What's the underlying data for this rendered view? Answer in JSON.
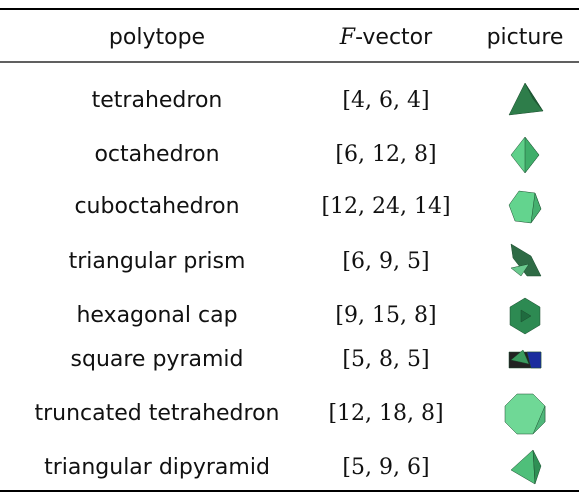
{
  "table": {
    "header": [
      "polytope",
      [
        "F",
        "-vector"
      ],
      "picture"
    ],
    "rows": [
      [
        "tetrahedron",
        "[4, 6, 4]"
      ],
      [
        "octahedron",
        "[6, 12, 8]"
      ],
      [
        "cuboctahedron",
        "[12, 24, 14]"
      ],
      [
        "triangular prism",
        "[6, 9, 5]"
      ],
      [
        "hexagonal cap",
        "[9, 15, 8]"
      ],
      [
        "square pyramid",
        "[5, 8, 5]"
      ],
      [
        "truncated tetrahedron",
        "[12, 18, 8]"
      ],
      [
        "triangular dipyramid",
        "[5, 9, 6]"
      ]
    ]
  }
}
